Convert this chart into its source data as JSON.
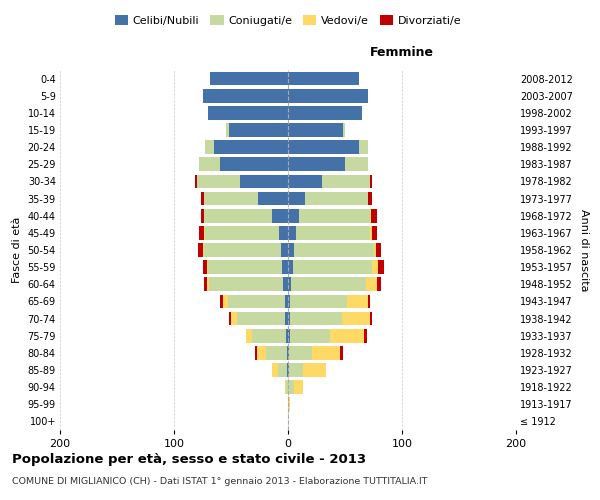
{
  "age_groups": [
    "100+",
    "95-99",
    "90-94",
    "85-89",
    "80-84",
    "75-79",
    "70-74",
    "65-69",
    "60-64",
    "55-59",
    "50-54",
    "45-49",
    "40-44",
    "35-39",
    "30-34",
    "25-29",
    "20-24",
    "15-19",
    "10-14",
    "5-9",
    "0-4"
  ],
  "birth_years": [
    "≤ 1912",
    "1913-1917",
    "1918-1922",
    "1923-1927",
    "1928-1932",
    "1933-1937",
    "1938-1942",
    "1943-1947",
    "1948-1952",
    "1953-1957",
    "1958-1962",
    "1963-1967",
    "1968-1972",
    "1973-1977",
    "1978-1982",
    "1983-1987",
    "1988-1992",
    "1993-1997",
    "1998-2002",
    "2003-2007",
    "2008-2012"
  ],
  "males": {
    "celibe": [
      0,
      0,
      0,
      1,
      1,
      2,
      3,
      3,
      4,
      5,
      6,
      8,
      14,
      26,
      42,
      60,
      65,
      52,
      70,
      75,
      68
    ],
    "coniugato": [
      0,
      0,
      2,
      8,
      18,
      30,
      42,
      50,
      65,
      65,
      68,
      65,
      60,
      48,
      38,
      18,
      8,
      2,
      0,
      0,
      0
    ],
    "vedovo": [
      0,
      0,
      1,
      5,
      8,
      5,
      5,
      4,
      2,
      1,
      1,
      1,
      0,
      0,
      0,
      0,
      0,
      0,
      0,
      0,
      0
    ],
    "divorziato": [
      0,
      0,
      0,
      0,
      2,
      0,
      2,
      3,
      3,
      4,
      4,
      4,
      2,
      2,
      2,
      0,
      0,
      0,
      0,
      0,
      0
    ]
  },
  "females": {
    "nubile": [
      0,
      0,
      0,
      1,
      1,
      2,
      2,
      2,
      3,
      4,
      5,
      7,
      10,
      15,
      30,
      50,
      62,
      48,
      65,
      70,
      62
    ],
    "coniugata": [
      0,
      1,
      5,
      12,
      20,
      35,
      45,
      50,
      65,
      70,
      70,
      65,
      62,
      55,
      42,
      20,
      8,
      2,
      0,
      0,
      0
    ],
    "vedova": [
      0,
      1,
      8,
      20,
      25,
      30,
      25,
      18,
      10,
      5,
      2,
      2,
      1,
      0,
      0,
      0,
      0,
      0,
      0,
      0,
      0
    ],
    "divorziata": [
      0,
      0,
      0,
      0,
      2,
      2,
      2,
      2,
      4,
      5,
      5,
      4,
      5,
      4,
      2,
      0,
      0,
      0,
      0,
      0,
      0
    ]
  },
  "colors": {
    "celibe": "#4472a8",
    "coniugato": "#c5d9a0",
    "vedovo": "#ffd966",
    "divorziato": "#c00000"
  },
  "xlim": 200,
  "title": "Popolazione per età, sesso e stato civile - 2013",
  "subtitle": "COMUNE DI MIGLIANICO (CH) - Dati ISTAT 1° gennaio 2013 - Elaborazione TUTTITALIA.IT",
  "ylabel_left": "Fasce di età",
  "ylabel_right": "Anni di nascita",
  "xlabel_right": "Femmine",
  "legend_labels": [
    "Celibi/Nubili",
    "Coniugati/e",
    "Vedovi/e",
    "Divorziati/e"
  ],
  "bg_color": "#ffffff",
  "grid_color": "#cccccc",
  "xtick_labels": [
    "200",
    "100",
    "0",
    "100",
    "200"
  ]
}
